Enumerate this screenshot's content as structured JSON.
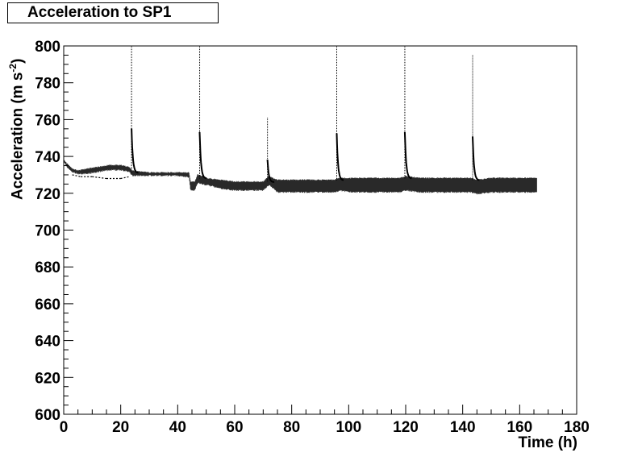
{
  "chart_data": {
    "type": "scatter",
    "title": "Acceleration to SP1",
    "xlabel": "Time (h)",
    "ylabel": {
      "base": "Acceleration (m s",
      "exp": "-2",
      "close": ")"
    },
    "xlim": [
      0,
      180
    ],
    "ylim": [
      600,
      800
    ],
    "x_ticks": [
      0,
      20,
      40,
      60,
      80,
      100,
      120,
      140,
      160,
      180
    ],
    "y_ticks": [
      600,
      620,
      640,
      660,
      680,
      700,
      720,
      740,
      760,
      780,
      800
    ],
    "grid": false,
    "color": "#000000",
    "series": [
      {
        "band_points": [
          [
            0,
            738,
            738
          ],
          [
            1,
            735,
            736
          ],
          [
            3,
            732,
            733
          ],
          [
            5,
            731,
            732
          ],
          [
            8,
            731,
            733
          ],
          [
            12,
            732,
            734
          ],
          [
            16,
            733,
            735
          ],
          [
            20,
            733,
            735
          ],
          [
            23,
            732,
            734
          ],
          [
            24,
            730,
            732
          ],
          [
            30,
            730,
            731
          ],
          [
            40,
            730,
            731
          ],
          [
            44,
            729,
            731
          ],
          [
            44.5,
            722,
            726
          ],
          [
            46,
            722,
            726
          ],
          [
            47,
            726,
            730
          ],
          [
            50,
            725,
            728
          ],
          [
            55,
            723,
            727
          ],
          [
            60,
            722,
            726
          ],
          [
            66,
            722,
            726
          ],
          [
            70,
            722,
            726
          ],
          [
            72,
            725,
            729
          ],
          [
            75,
            721,
            727
          ],
          [
            80,
            721,
            727
          ],
          [
            90,
            721,
            727
          ],
          [
            95,
            721,
            727
          ],
          [
            97,
            722,
            728
          ],
          [
            100,
            721,
            728
          ],
          [
            110,
            721,
            728
          ],
          [
            118,
            721,
            728
          ],
          [
            120,
            722,
            729
          ],
          [
            125,
            721,
            728
          ],
          [
            135,
            721,
            728
          ],
          [
            143,
            721,
            728
          ],
          [
            145,
            720,
            727
          ],
          [
            150,
            721,
            728
          ],
          [
            160,
            721,
            728
          ],
          [
            166,
            721,
            728
          ]
        ],
        "lower_trace": [
          [
            3,
            730
          ],
          [
            6,
            729
          ],
          [
            10,
            729
          ],
          [
            15,
            728
          ],
          [
            20,
            728
          ],
          [
            23,
            729
          ]
        ],
        "spikes": [
          {
            "t": 23.8,
            "peak": 800,
            "decay_to": 731
          },
          {
            "t": 47.7,
            "peak": 800,
            "decay_to": 728
          },
          {
            "t": 71.5,
            "peak": 761,
            "decay_to": 726
          },
          {
            "t": 95.8,
            "peak": 800,
            "decay_to": 727
          },
          {
            "t": 119.7,
            "peak": 800,
            "decay_to": 728
          },
          {
            "t": 143.5,
            "peak": 795,
            "decay_to": 727
          }
        ]
      }
    ]
  }
}
